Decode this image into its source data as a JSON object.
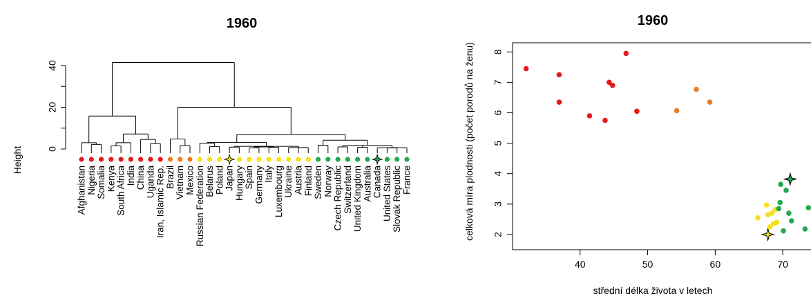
{
  "colors": {
    "red": "#e31a1c",
    "orange": "#ee7d25",
    "yellow": "#f7e01c",
    "green": "#22a950",
    "line": "#000000"
  },
  "chart_data": [
    {
      "type": "dendrogram",
      "title": "1960",
      "ylabel": "Height",
      "ylim": [
        0,
        40
      ],
      "yticks": [
        "0",
        "20",
        "40"
      ],
      "leaves": [
        {
          "label": "Afghanistan",
          "group": "red"
        },
        {
          "label": "Nigeria",
          "group": "red"
        },
        {
          "label": "Somalia",
          "group": "red"
        },
        {
          "label": "Kenya",
          "group": "red"
        },
        {
          "label": "South Africa",
          "group": "red"
        },
        {
          "label": "India",
          "group": "red"
        },
        {
          "label": "China",
          "group": "red"
        },
        {
          "label": "Uganda",
          "group": "red"
        },
        {
          "label": "Iran, Islamic Rep.",
          "group": "red"
        },
        {
          "label": "Brazil",
          "group": "orange"
        },
        {
          "label": "Vietnam",
          "group": "orange"
        },
        {
          "label": "Mexico",
          "group": "orange"
        },
        {
          "label": "Russian Federation",
          "group": "yellow"
        },
        {
          "label": "Belarus",
          "group": "yellow"
        },
        {
          "label": "Poland",
          "group": "yellow"
        },
        {
          "label": "Japan",
          "group": "yellow",
          "star": true
        },
        {
          "label": "Hungary",
          "group": "yellow"
        },
        {
          "label": "Spain",
          "group": "yellow"
        },
        {
          "label": "Germany",
          "group": "yellow"
        },
        {
          "label": "Italy",
          "group": "yellow"
        },
        {
          "label": "Luxembourg",
          "group": "yellow"
        },
        {
          "label": "Ukraine",
          "group": "yellow"
        },
        {
          "label": "Austria",
          "group": "yellow"
        },
        {
          "label": "Finland",
          "group": "yellow"
        },
        {
          "label": "Sweden",
          "group": "green"
        },
        {
          "label": "Norway",
          "group": "green"
        },
        {
          "label": "Czech Republic",
          "group": "green"
        },
        {
          "label": "Switzerland",
          "group": "green"
        },
        {
          "label": "United Kingdom",
          "group": "green"
        },
        {
          "label": "Australia",
          "group": "green"
        },
        {
          "label": "Canada",
          "group": "green",
          "star": true
        },
        {
          "label": "United States",
          "group": "green"
        },
        {
          "label": "Slovak Republic",
          "group": "green"
        },
        {
          "label": "France",
          "group": "green"
        }
      ],
      "merges": [
        [
          1,
          2,
          2.2
        ],
        [
          3,
          4,
          1.5
        ],
        [
          5,
          6,
          1.6
        ],
        [
          9,
          10,
          3.8
        ],
        [
          10,
          11,
          1.5
        ],
        [
          13,
          14,
          0.8
        ],
        [
          15,
          16,
          0.5
        ],
        [
          17,
          18,
          0.4
        ],
        [
          19,
          20,
          0.5
        ],
        [
          20,
          21,
          0.5
        ],
        [
          22,
          23,
          0.6
        ],
        [
          25,
          26,
          0.8
        ],
        [
          27,
          28,
          0.6
        ],
        [
          29,
          30,
          0.6
        ],
        [
          31,
          32,
          0.8
        ],
        [
          32,
          33,
          0.7
        ],
        [
          -1,
          -2,
          2.8
        ],
        [
          -4,
          -5,
          2.6
        ],
        [
          -7,
          7,
          3.2
        ],
        [
          -14,
          -15,
          1.0
        ],
        [
          -17,
          -18,
          1.0
        ],
        [
          -19,
          -21,
          0.7
        ],
        [
          -22,
          24,
          1.5
        ],
        [
          -23,
          -24,
          1.4
        ],
        [
          -25,
          -26,
          1.3
        ],
        [
          -28,
          -27,
          1.5
        ],
        [
          -27,
          -28,
          4.0
        ],
        [
          -29,
          -30,
          1.6
        ],
        [
          -31,
          -32,
          1.8
        ],
        [
          -33,
          -34,
          2.4
        ],
        [
          -35,
          -36,
          6.8
        ],
        [
          -37,
          -38,
          4.8
        ],
        [
          -39,
          -40,
          6.8
        ],
        [
          -41,
          -42,
          7.2
        ],
        [
          -43,
          -44,
          3.2
        ],
        [
          -45,
          -46,
          2.0
        ],
        [
          -47,
          -48,
          15.8
        ],
        [
          -49,
          8,
          6.8
        ],
        [
          -50,
          -51,
          7.0
        ],
        [
          -52,
          -53,
          8.0
        ],
        [
          -54,
          -55,
          20.0
        ],
        [
          -56,
          -57,
          41.5
        ]
      ]
    },
    {
      "type": "scatter",
      "title": "1960",
      "xlabel": "střední délka života v letech",
      "ylabel": "celková míra plodnosti (počet porodů na ženu)",
      "xlim": [
        30,
        75
      ],
      "ylim": [
        1.5,
        8.3
      ],
      "xticks": [
        "40",
        "50",
        "60",
        "70"
      ],
      "yticks": [
        "2",
        "3",
        "4",
        "5",
        "6",
        "7",
        "8"
      ],
      "points": [
        {
          "x": 32.0,
          "y": 7.45,
          "group": "red"
        },
        {
          "x": 36.9,
          "y": 7.25,
          "group": "red"
        },
        {
          "x": 36.9,
          "y": 6.35,
          "group": "red"
        },
        {
          "x": 41.4,
          "y": 5.9,
          "group": "red"
        },
        {
          "x": 43.7,
          "y": 5.75,
          "group": "red"
        },
        {
          "x": 44.3,
          "y": 7.0,
          "group": "red"
        },
        {
          "x": 44.8,
          "y": 6.9,
          "group": "red"
        },
        {
          "x": 46.8,
          "y": 7.95,
          "group": "red"
        },
        {
          "x": 48.4,
          "y": 6.05,
          "group": "red"
        },
        {
          "x": 54.3,
          "y": 6.07,
          "group": "orange"
        },
        {
          "x": 57.2,
          "y": 6.77,
          "group": "orange"
        },
        {
          "x": 59.2,
          "y": 6.35,
          "group": "orange"
        },
        {
          "x": 66.3,
          "y": 2.55,
          "group": "yellow"
        },
        {
          "x": 67.6,
          "y": 2.97,
          "group": "yellow"
        },
        {
          "x": 67.8,
          "y": 2.65,
          "group": "yellow"
        },
        {
          "x": 67.8,
          "y": 2.0,
          "group": "yellow",
          "star": true
        },
        {
          "x": 68.1,
          "y": 2.25,
          "group": "yellow"
        },
        {
          "x": 68.4,
          "y": 2.7,
          "group": "yellow"
        },
        {
          "x": 68.6,
          "y": 2.35,
          "group": "yellow"
        },
        {
          "x": 68.9,
          "y": 2.82,
          "group": "yellow"
        },
        {
          "x": 69.1,
          "y": 2.4,
          "group": "yellow"
        },
        {
          "x": 69.4,
          "y": 2.85,
          "group": "green"
        },
        {
          "x": 69.6,
          "y": 3.05,
          "group": "green"
        },
        {
          "x": 69.7,
          "y": 3.65,
          "group": "green"
        },
        {
          "x": 70.1,
          "y": 2.12,
          "group": "green"
        },
        {
          "x": 70.5,
          "y": 3.45,
          "group": "green"
        },
        {
          "x": 70.9,
          "y": 2.7,
          "group": "green"
        },
        {
          "x": 71.1,
          "y": 3.82,
          "group": "green",
          "star": true
        },
        {
          "x": 71.3,
          "y": 2.45,
          "group": "green"
        },
        {
          "x": 73.3,
          "y": 2.18,
          "group": "green"
        },
        {
          "x": 73.8,
          "y": 2.88,
          "group": "green"
        }
      ]
    }
  ]
}
